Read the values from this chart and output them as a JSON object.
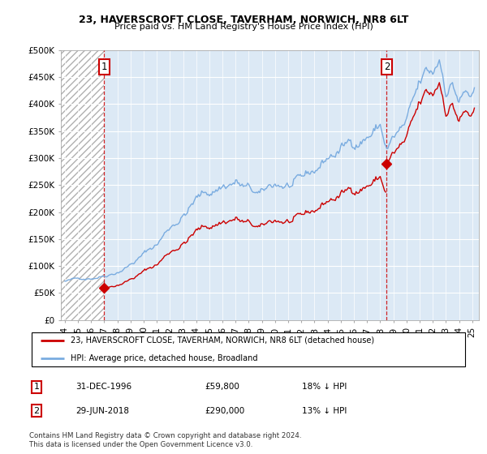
{
  "title": "23, HAVERSCROFT CLOSE, TAVERHAM, NORWICH, NR8 6LT",
  "subtitle": "Price paid vs. HM Land Registry's House Price Index (HPI)",
  "legend_label_red": "23, HAVERSCROFT CLOSE, TAVERHAM, NORWICH, NR8 6LT (detached house)",
  "legend_label_blue": "HPI: Average price, detached house, Broadland",
  "note1": "Contains HM Land Registry data © Crown copyright and database right 2024.",
  "note2": "This data is licensed under the Open Government Licence v3.0.",
  "point1_date": "31-DEC-1996",
  "point1_price": "£59,800",
  "point1_hpi": "18% ↓ HPI",
  "point2_date": "29-JUN-2018",
  "point2_price": "£290,000",
  "point2_hpi": "13% ↓ HPI",
  "red_color": "#cc0000",
  "blue_color": "#7aace0",
  "plot_bg_color": "#dce9f5",
  "hatch_color": "#c8c8c8",
  "grid_color": "#ffffff",
  "ylim": [
    0,
    500000
  ],
  "yticks": [
    0,
    50000,
    100000,
    150000,
    200000,
    250000,
    300000,
    350000,
    400000,
    450000,
    500000
  ],
  "ytick_labels": [
    "£0",
    "£50K",
    "£100K",
    "£150K",
    "£200K",
    "£250K",
    "£300K",
    "£350K",
    "£400K",
    "£450K",
    "£500K"
  ],
  "point1_x": 1997.0,
  "point1_y": 59800,
  "point2_x": 2018.5,
  "point2_y": 290000,
  "vline1_x": 1997.0,
  "vline2_x": 2018.5,
  "hatch_end_x": 1997.0,
  "xlim_start": 1993.7,
  "xlim_end": 2025.5
}
